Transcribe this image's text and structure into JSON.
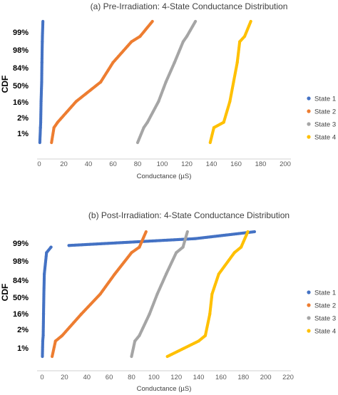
{
  "chart_data": [
    {
      "type": "scatter",
      "title": "(a) Pre-Irradiation: 4-State Conductance Distribution",
      "xlabel": "Conductance (µS)",
      "ylabel": "CDF",
      "xlim": [
        0,
        200
      ],
      "x_ticks": [
        "0",
        "20",
        "40",
        "60",
        "80",
        "100",
        "120",
        "140",
        "160",
        "180",
        "200"
      ],
      "y_ticks": [
        "99%",
        "98%",
        "84%",
        "50%",
        "16%",
        "2%",
        "1%"
      ],
      "y_scale": "probability",
      "grid": false,
      "legend_position": "right",
      "series": [
        {
          "name": "State 1",
          "color": "#4472C4",
          "points": [
            [
              0.5,
              0.1
            ],
            [
              1,
              1
            ],
            [
              1.2,
              2
            ],
            [
              1.5,
              16
            ],
            [
              2,
              50
            ],
            [
              2.2,
              84
            ],
            [
              2.5,
              98
            ],
            [
              2.6,
              99
            ],
            [
              3,
              99.9
            ]
          ]
        },
        {
          "name": "State 2",
          "color": "#ED7D31",
          "points": [
            [
              10,
              0.1
            ],
            [
              12,
              1
            ],
            [
              15,
              2
            ],
            [
              30,
              16
            ],
            [
              50,
              50
            ],
            [
              60,
              84
            ],
            [
              75,
              98
            ],
            [
              82,
              99
            ],
            [
              92,
              99.9
            ]
          ]
        },
        {
          "name": "State 3",
          "color": "#A5A5A5",
          "points": [
            [
              80,
              0.1
            ],
            [
              85,
              1
            ],
            [
              88,
              2
            ],
            [
              97,
              16
            ],
            [
              103,
              50
            ],
            [
              110,
              84
            ],
            [
              117,
              98
            ],
            [
              120,
              99
            ],
            [
              127,
              99.9
            ]
          ]
        },
        {
          "name": "State 4",
          "color": "#FFC000",
          "points": [
            [
              139,
              0.1
            ],
            [
              142,
              1
            ],
            [
              150,
              2
            ],
            [
              155,
              16
            ],
            [
              158,
              50
            ],
            [
              161,
              84
            ],
            [
              163,
              98
            ],
            [
              167,
              99
            ],
            [
              172,
              99.9
            ]
          ]
        }
      ]
    },
    {
      "type": "scatter",
      "title": "(b) Post-Irradiation: 4-State Conductance Distribution",
      "xlabel": "Conductance (µS)",
      "ylabel": "CDF",
      "xlim": [
        0,
        220
      ],
      "x_ticks": [
        "0",
        "20",
        "40",
        "60",
        "80",
        "100",
        "120",
        "140",
        "160",
        "180",
        "200",
        "220"
      ],
      "y_ticks": [
        "99%",
        "98%",
        "84%",
        "50%",
        "16%",
        "2%",
        "1%"
      ],
      "y_scale": "probability",
      "grid": false,
      "legend_position": "right",
      "series": [
        {
          "name": "State 1",
          "color": "#4472C4",
          "points": [
            [
              0.3,
              0.1
            ],
            [
              0.6,
              1
            ],
            [
              1,
              2
            ],
            [
              1.3,
              16
            ],
            [
              1.6,
              50
            ],
            [
              2,
              84
            ],
            [
              4,
              98
            ],
            [
              8,
              99
            ],
            [
              24,
              99.2
            ],
            [
              137,
              99.7
            ],
            [
              190,
              99.9
            ]
          ]
        },
        {
          "name": "State 2",
          "color": "#ED7D31",
          "points": [
            [
              9,
              0.1
            ],
            [
              12,
              1
            ],
            [
              18,
              2
            ],
            [
              35,
              16
            ],
            [
              52,
              50
            ],
            [
              65,
              84
            ],
            [
              80,
              98
            ],
            [
              87,
              99
            ],
            [
              93,
              99.9
            ]
          ]
        },
        {
          "name": "State 3",
          "color": "#A5A5A5",
          "points": [
            [
              80,
              0.1
            ],
            [
              83,
              1
            ],
            [
              87,
              2
            ],
            [
              96,
              16
            ],
            [
              103,
              50
            ],
            [
              111,
              84
            ],
            [
              120,
              98
            ],
            [
              126,
              99
            ],
            [
              130,
              99.9
            ]
          ]
        },
        {
          "name": "State 4",
          "color": "#FFC000",
          "points": [
            [
              112,
              0.1
            ],
            [
              140,
              1
            ],
            [
              146,
              2
            ],
            [
              150,
              16
            ],
            [
              152,
              50
            ],
            [
              158,
              84
            ],
            [
              172,
              98
            ],
            [
              178,
              99
            ],
            [
              184,
              99.9
            ]
          ]
        }
      ]
    }
  ]
}
